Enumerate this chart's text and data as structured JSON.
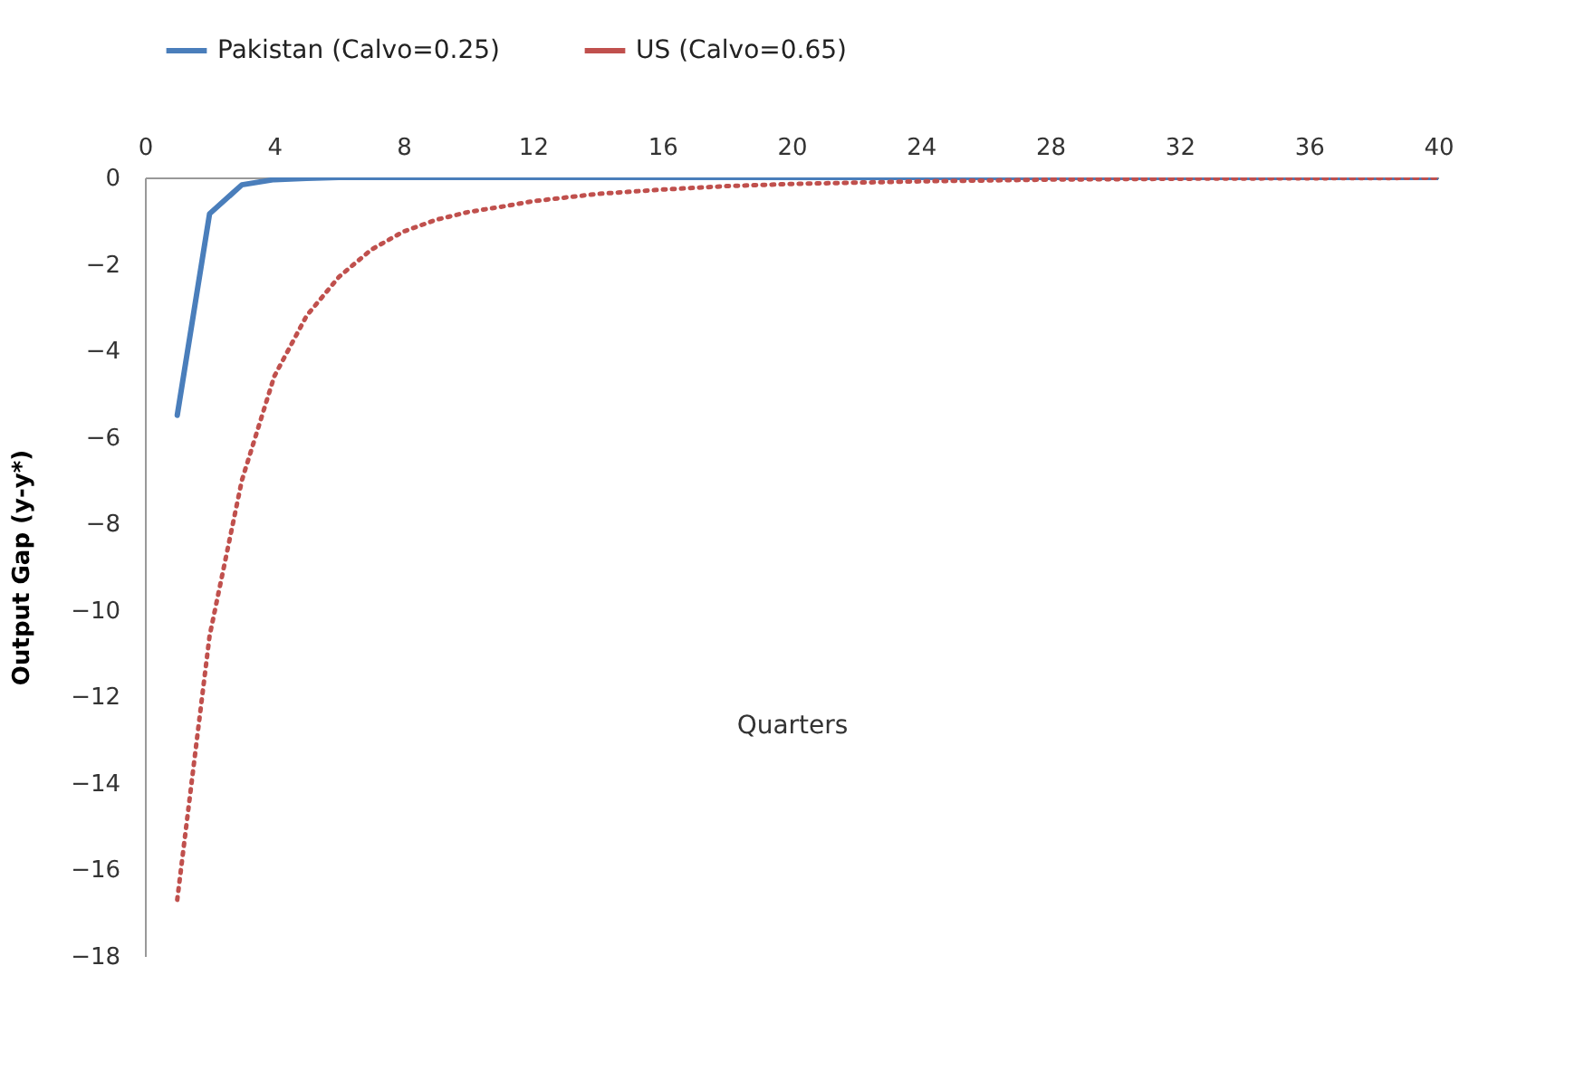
{
  "chart_data": {
    "type": "line",
    "xlabel": "Quarters",
    "ylabel": "Output Gap (y-y*)",
    "xlim": [
      0,
      40
    ],
    "xticks": [
      0,
      4,
      8,
      12,
      16,
      20,
      24,
      28,
      32,
      36,
      40
    ],
    "ylim": [
      -18,
      0
    ],
    "yticks": [
      0,
      -2,
      -4,
      -6,
      -8,
      -10,
      -12,
      -14,
      -16,
      -18
    ],
    "grid": false,
    "legend": "top",
    "marker": "none",
    "series": [
      {
        "name": "Pakistan (Calvo=0.25)",
        "color": "#4a7ebb",
        "line_style": "solid",
        "x": [
          1,
          2,
          3,
          4,
          5,
          6,
          8,
          12,
          16,
          20,
          24,
          28,
          32,
          36,
          40
        ],
        "values": [
          -5.5,
          -0.84,
          -0.17,
          -0.05,
          -0.02,
          0,
          0,
          0,
          0,
          0,
          0,
          0,
          0,
          0,
          0
        ]
      },
      {
        "name": "US (Calvo=0.65)",
        "color": "#c0504d",
        "line_style": "dotted",
        "x": [
          1,
          2,
          3,
          4,
          5,
          6,
          7,
          8,
          9,
          10,
          11,
          12,
          14,
          16,
          18,
          20,
          24,
          28,
          32,
          36,
          40
        ],
        "values": [
          -16.7,
          -10.6,
          -7.0,
          -4.6,
          -3.2,
          -2.3,
          -1.67,
          -1.25,
          -0.98,
          -0.8,
          -0.68,
          -0.55,
          -0.38,
          -0.28,
          -0.2,
          -0.15,
          -0.09,
          -0.05,
          -0.03,
          -0.02,
          -0.01
        ]
      }
    ]
  }
}
